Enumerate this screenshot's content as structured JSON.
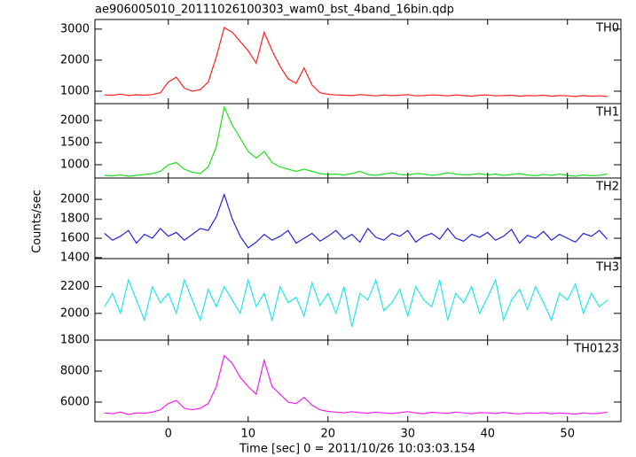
{
  "title": "ae906005010_20111026100303_wam0_bst_4band_16bin.qdp",
  "ylabel": "Counts/sec",
  "xlabel": "Time [sec] 0 = 2011/10/26 10:03:03.154",
  "chart_data": [
    {
      "type": "line",
      "label": "TH0",
      "color": "#ff2020",
      "x": [
        -8,
        -7,
        -6,
        -5,
        -4,
        -3,
        -2,
        -1,
        0,
        1,
        2,
        3,
        4,
        5,
        6,
        7,
        8,
        9,
        10,
        11,
        12,
        13,
        14,
        15,
        16,
        17,
        18,
        19,
        20,
        21,
        22,
        23,
        24,
        25,
        26,
        27,
        28,
        29,
        30,
        31,
        32,
        33,
        34,
        35,
        36,
        37,
        38,
        39,
        40,
        41,
        42,
        43,
        44,
        45,
        46,
        47,
        48,
        49,
        50,
        51,
        52,
        53,
        54,
        55
      ],
      "values": [
        880,
        870,
        905,
        860,
        885,
        870,
        890,
        950,
        1300,
        1450,
        1100,
        1000,
        1050,
        1300,
        2100,
        3050,
        2900,
        2600,
        2300,
        1900,
        2900,
        2300,
        1800,
        1400,
        1250,
        1750,
        1200,
        950,
        900,
        880,
        870,
        860,
        890,
        870,
        850,
        880,
        860,
        870,
        890,
        850,
        860,
        880,
        870,
        850,
        880,
        860,
        840,
        870,
        880,
        850,
        860,
        870,
        840,
        860,
        850,
        870,
        840,
        860,
        850,
        830,
        860,
        840,
        850,
        830
      ],
      "xlim": [
        -9.2,
        56.7
      ],
      "xticks": [
        0,
        10,
        20,
        30,
        40,
        50
      ],
      "ylim": [
        600,
        3310
      ],
      "yticks": [
        1000,
        2000,
        3000
      ]
    },
    {
      "type": "line",
      "label": "TH1",
      "color": "#22dd22",
      "x": [
        -8,
        -7,
        -6,
        -5,
        -4,
        -3,
        -2,
        -1,
        0,
        1,
        2,
        3,
        4,
        5,
        6,
        7,
        8,
        9,
        10,
        11,
        12,
        13,
        14,
        15,
        16,
        17,
        18,
        19,
        20,
        21,
        22,
        23,
        24,
        25,
        26,
        27,
        28,
        29,
        30,
        31,
        32,
        33,
        34,
        35,
        36,
        37,
        38,
        39,
        40,
        41,
        42,
        43,
        44,
        45,
        46,
        47,
        48,
        49,
        50,
        51,
        52,
        53,
        54,
        55
      ],
      "values": [
        760,
        750,
        770,
        740,
        760,
        780,
        800,
        850,
        1000,
        1050,
        900,
        830,
        800,
        950,
        1400,
        2300,
        1900,
        1600,
        1300,
        1150,
        1300,
        1050,
        950,
        900,
        850,
        900,
        850,
        800,
        780,
        790,
        770,
        800,
        850,
        780,
        760,
        790,
        820,
        780,
        770,
        800,
        790,
        760,
        780,
        820,
        790,
        770,
        780,
        800,
        770,
        790,
        760,
        780,
        800,
        770,
        750,
        780,
        760,
        790,
        760,
        740,
        770,
        750,
        760,
        790
      ],
      "xlim": [
        -9.2,
        56.7
      ],
      "xticks": [
        0,
        10,
        20,
        30,
        40,
        50
      ],
      "ylim": [
        700,
        2380
      ],
      "yticks": [
        1000,
        1500,
        2000
      ]
    },
    {
      "type": "line",
      "label": "TH2",
      "color": "#2222dd",
      "x": [
        -8,
        -7,
        -6,
        -5,
        -4,
        -3,
        -2,
        -1,
        0,
        1,
        2,
        3,
        4,
        5,
        6,
        7,
        8,
        9,
        10,
        11,
        12,
        13,
        14,
        15,
        16,
        17,
        18,
        19,
        20,
        21,
        22,
        23,
        24,
        25,
        26,
        27,
        28,
        29,
        30,
        31,
        32,
        33,
        34,
        35,
        36,
        37,
        38,
        39,
        40,
        41,
        42,
        43,
        44,
        45,
        46,
        47,
        48,
        49,
        50,
        51,
        52,
        53,
        54,
        55
      ],
      "values": [
        1650,
        1580,
        1620,
        1680,
        1550,
        1640,
        1600,
        1700,
        1620,
        1660,
        1580,
        1640,
        1700,
        1680,
        1820,
        2050,
        1800,
        1620,
        1500,
        1560,
        1640,
        1580,
        1620,
        1680,
        1550,
        1600,
        1650,
        1570,
        1620,
        1680,
        1590,
        1640,
        1560,
        1700,
        1610,
        1580,
        1650,
        1620,
        1680,
        1560,
        1620,
        1650,
        1590,
        1700,
        1600,
        1570,
        1640,
        1610,
        1660,
        1580,
        1620,
        1690,
        1550,
        1630,
        1600,
        1670,
        1580,
        1640,
        1600,
        1560,
        1650,
        1620,
        1680,
        1590
      ],
      "xlim": [
        -9.2,
        56.7
      ],
      "xticks": [
        0,
        10,
        20,
        30,
        40,
        50
      ],
      "ylim": [
        1390,
        2220
      ],
      "yticks": [
        1400,
        1600,
        1800,
        2000
      ]
    },
    {
      "type": "line",
      "label": "TH3",
      "color": "#22e8e8",
      "x": [
        -8,
        -7,
        -6,
        -5,
        -4,
        -3,
        -2,
        -1,
        0,
        1,
        2,
        3,
        4,
        5,
        6,
        7,
        8,
        9,
        10,
        11,
        12,
        13,
        14,
        15,
        16,
        17,
        18,
        19,
        20,
        21,
        22,
        23,
        24,
        25,
        26,
        27,
        28,
        29,
        30,
        31,
        32,
        33,
        34,
        35,
        36,
        37,
        38,
        39,
        40,
        41,
        42,
        43,
        44,
        45,
        46,
        47,
        48,
        49,
        50,
        51,
        52,
        53,
        54,
        55
      ],
      "values": [
        2050,
        2150,
        2000,
        2250,
        2100,
        1950,
        2200,
        2080,
        2150,
        2000,
        2250,
        2100,
        1950,
        2180,
        2050,
        2200,
        2100,
        2000,
        2250,
        2050,
        2150,
        1950,
        2200,
        2080,
        2120,
        1980,
        2230,
        2060,
        2150,
        2000,
        2200,
        1900,
        2150,
        2100,
        2250,
        2020,
        2080,
        2180,
        1980,
        2200,
        2100,
        2050,
        2250,
        1950,
        2150,
        2080,
        2200,
        2000,
        2120,
        2250,
        1950,
        2100,
        2180,
        2030,
        2200,
        2080,
        1950,
        2150,
        2100,
        2220,
        2000,
        2150,
        2050,
        2100
      ],
      "xlim": [
        -9.2,
        56.7
      ],
      "xticks": [
        0,
        10,
        20,
        30,
        40,
        50
      ],
      "ylim": [
        1800,
        2410
      ],
      "yticks": [
        1800,
        2000,
        2200
      ]
    },
    {
      "type": "line",
      "label": "TH0123",
      "color": "#ee22ee",
      "x": [
        -8,
        -7,
        -6,
        -5,
        -4,
        -3,
        -2,
        -1,
        0,
        1,
        2,
        3,
        4,
        5,
        6,
        7,
        8,
        9,
        10,
        11,
        12,
        13,
        14,
        15,
        16,
        17,
        18,
        19,
        20,
        21,
        22,
        23,
        24,
        25,
        26,
        27,
        28,
        29,
        30,
        31,
        32,
        33,
        34,
        35,
        36,
        37,
        38,
        39,
        40,
        41,
        42,
        43,
        44,
        45,
        46,
        47,
        48,
        49,
        50,
        51,
        52,
        53,
        54,
        55
      ],
      "values": [
        5300,
        5250,
        5350,
        5200,
        5300,
        5280,
        5350,
        5500,
        5900,
        6100,
        5600,
        5500,
        5600,
        5900,
        7000,
        9000,
        8500,
        7600,
        7000,
        6500,
        8700,
        7000,
        6500,
        6000,
        5900,
        6300,
        5800,
        5500,
        5400,
        5350,
        5300,
        5380,
        5320,
        5280,
        5350,
        5300,
        5260,
        5320,
        5380,
        5300,
        5250,
        5340,
        5300,
        5280,
        5350,
        5300,
        5250,
        5320,
        5300,
        5260,
        5330,
        5280,
        5240,
        5300,
        5270,
        5320,
        5250,
        5290,
        5260,
        5220,
        5300,
        5250,
        5280,
        5350
      ],
      "xlim": [
        -9.2,
        56.7
      ],
      "xticks": [
        0,
        10,
        20,
        30,
        40,
        50
      ],
      "ylim": [
        4740,
        10000
      ],
      "yticks": [
        6000,
        8000
      ]
    }
  ]
}
